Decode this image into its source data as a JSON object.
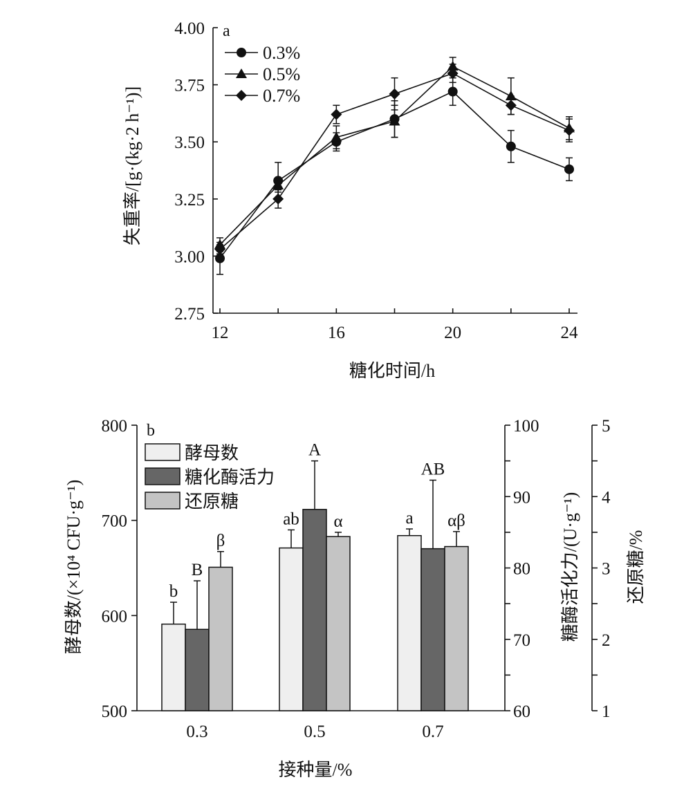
{
  "chart_data": [
    {
      "type": "line",
      "panel_label": "a",
      "xlabel": "糖化时间/h",
      "ylabel": "失重率/[g·(kg·2 h⁻¹)]",
      "xlim": [
        12,
        24
      ],
      "ylim": [
        2.75,
        4.0
      ],
      "x_ticks": [
        "12",
        "16",
        "20",
        "24"
      ],
      "y_ticks": [
        "2.75",
        "3.00",
        "3.25",
        "3.50",
        "3.75",
        "4.00"
      ],
      "legend_position": "top-left",
      "x": [
        12,
        14,
        16,
        18,
        20,
        22,
        24
      ],
      "series": [
        {
          "name": "0.3%",
          "marker": "circle",
          "values": [
            2.99,
            3.33,
            3.5,
            3.6,
            3.72,
            3.48,
            3.38
          ],
          "errors": [
            0.07,
            0.08,
            0.04,
            0.08,
            0.06,
            0.07,
            0.05
          ]
        },
        {
          "name": "0.5%",
          "marker": "triangle",
          "values": [
            3.05,
            3.31,
            3.52,
            3.59,
            3.83,
            3.7,
            3.56
          ],
          "errors": [
            0.03,
            0.03,
            0.05,
            0.07,
            0.04,
            0.08,
            0.05
          ]
        },
        {
          "name": "0.7%",
          "marker": "diamond",
          "values": [
            3.03,
            3.25,
            3.62,
            3.71,
            3.8,
            3.66,
            3.55
          ],
          "errors": [
            0.02,
            0.04,
            0.04,
            0.07,
            0.04,
            0.04,
            0.05
          ]
        }
      ]
    },
    {
      "type": "bar",
      "panel_label": "b",
      "xlabel": "接种量/%",
      "ylabel_left": "酵母数/(×10⁴ CFU·g⁻¹)",
      "ylabel_right1": "糖酶活化力/(U·g⁻¹)",
      "ylabel_right2": "还原糖/%",
      "categories": [
        "0.3",
        "0.5",
        "0.7"
      ],
      "y_left": {
        "lim": [
          500,
          800
        ],
        "ticks": [
          "500",
          "600",
          "700",
          "800"
        ]
      },
      "y_right1": {
        "lim": [
          60,
          100
        ],
        "ticks": [
          "60",
          "70",
          "80",
          "90",
          "100"
        ]
      },
      "y_right2": {
        "lim": [
          1,
          5
        ],
        "ticks": [
          "1",
          "2",
          "3",
          "4",
          "5"
        ]
      },
      "legend_position": "top-left",
      "series": [
        {
          "name": "酵母数",
          "axis": "left",
          "color": "#efefef",
          "values": [
            591,
            671,
            684
          ],
          "errors": [
            23,
            19,
            7
          ],
          "letters": [
            "b",
            "ab",
            "a"
          ]
        },
        {
          "name": "糖化酶活力",
          "axis": "right1",
          "color": "#666666",
          "values": [
            71.4,
            88.2,
            82.7
          ],
          "errors": [
            6.8,
            6.8,
            9.6
          ],
          "letters": [
            "B",
            "A",
            "AB"
          ]
        },
        {
          "name": "还原糖",
          "axis": "right2",
          "color": "#c4c4c4",
          "values": [
            3.01,
            3.44,
            3.3
          ],
          "errors": [
            0.22,
            0.06,
            0.21
          ],
          "letters": [
            "β",
            "α",
            "αβ"
          ]
        }
      ]
    }
  ]
}
